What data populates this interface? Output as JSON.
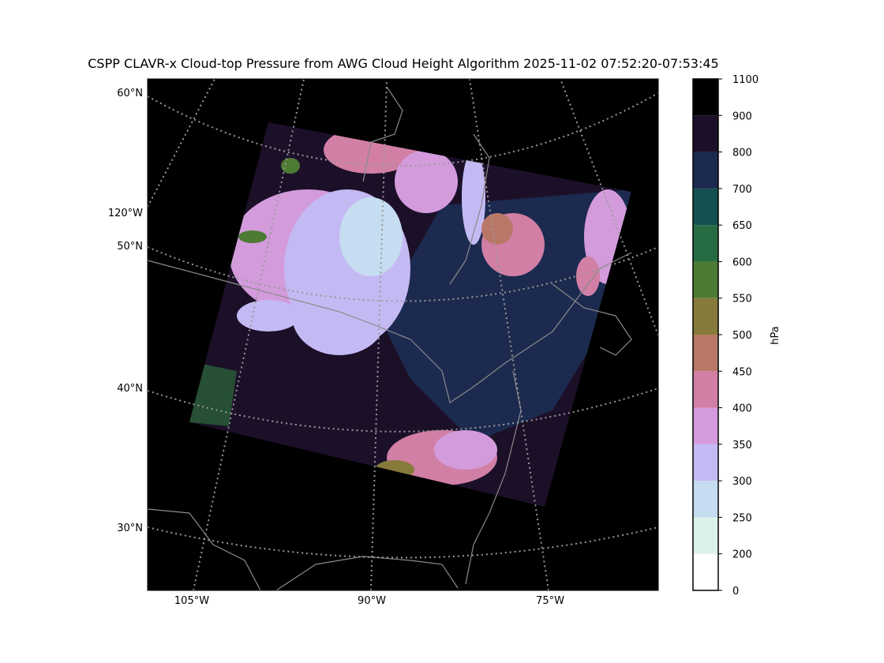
{
  "title": "CSPP CLAVR-x Cloud-top Pressure from AWG Cloud Height Algorithm 2025-11-02 07:52:20-07:53:45",
  "map": {
    "lat_labels": [
      "60°N",
      "50°N",
      "40°N",
      "30°N"
    ],
    "lon_labels_left": [
      "120°W"
    ],
    "lon_labels_bottom": [
      "105°W",
      "90°W",
      "75°W"
    ]
  },
  "colorbar": {
    "label": "hPa",
    "bounds": [
      0,
      200,
      250,
      300,
      350,
      400,
      450,
      500,
      550,
      600,
      650,
      700,
      800,
      900,
      1100
    ],
    "colors": [
      "#ffffff",
      "#dcf1ea",
      "#c6dcf0",
      "#c4baf3",
      "#d39bdc",
      "#d17fa5",
      "#b97867",
      "#877b3b",
      "#4e7b33",
      "#266b44",
      "#164f50",
      "#1c2a4f",
      "#1c1029",
      "#000000"
    ]
  }
}
